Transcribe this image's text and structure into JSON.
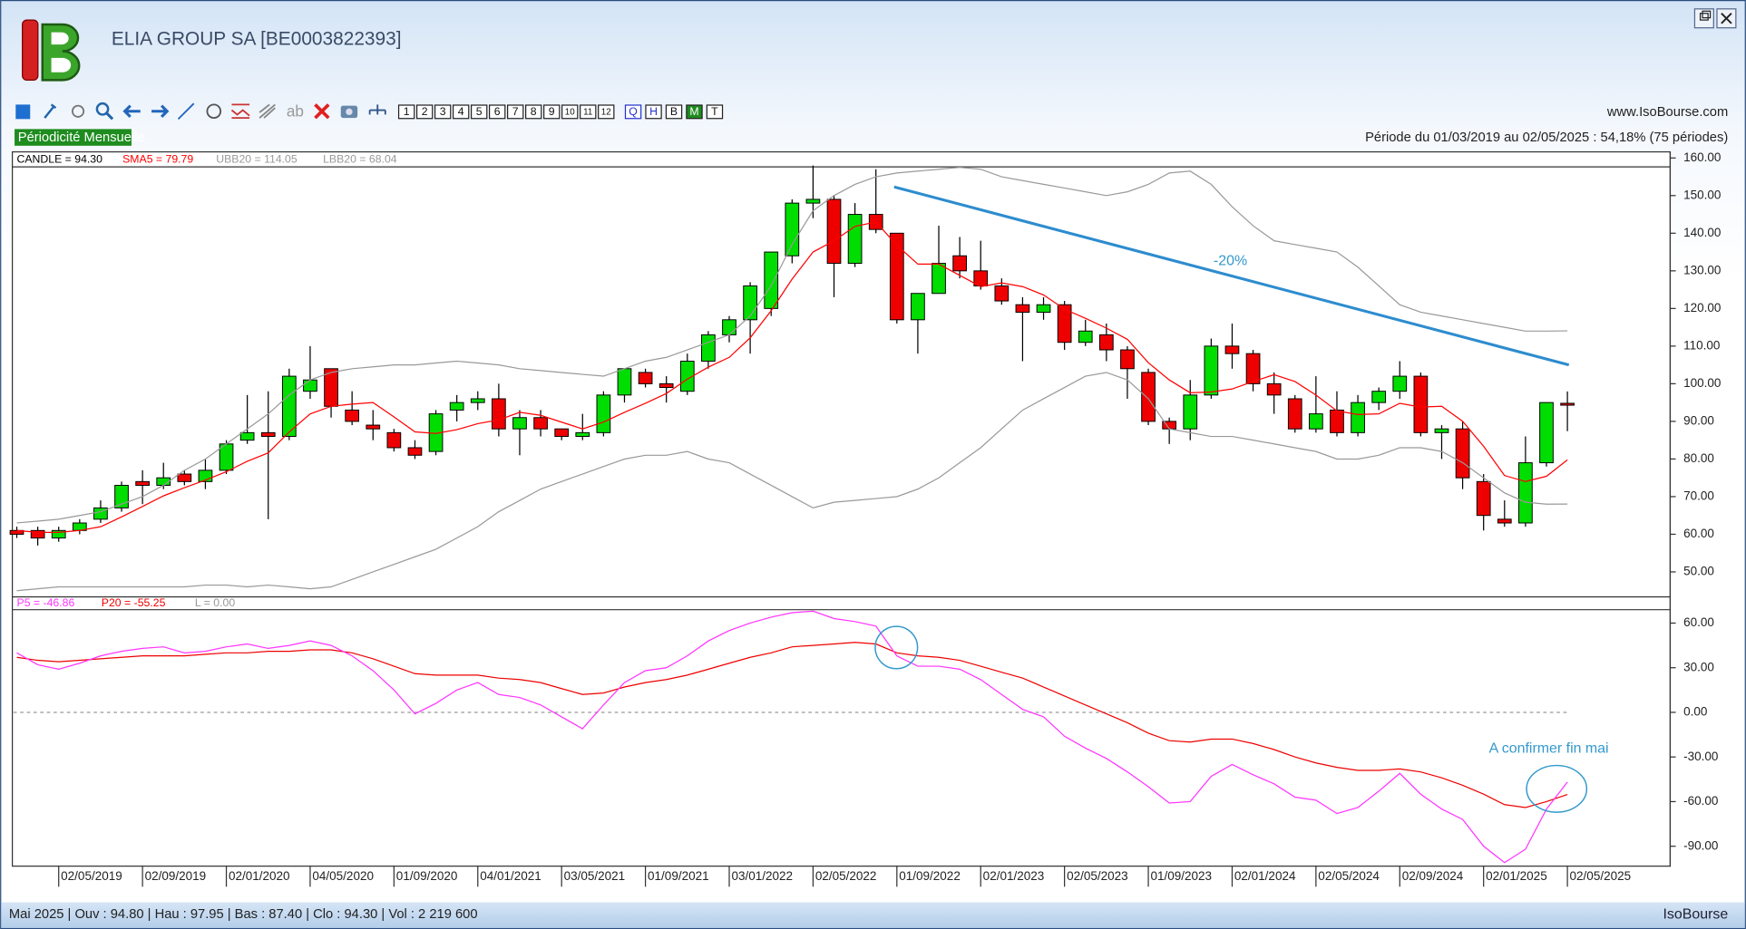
{
  "header": {
    "title": "ELIA GROUP SA [BE0003822393]",
    "source": "www.IsoBourse.com",
    "period": "Période du 01/03/2019 au 02/05/2025 : 54,18% (75 périodes)",
    "periodicity": "Périodicité Mensuelle"
  },
  "toolbar": {
    "text_tool": "ab",
    "buttons": [
      "1",
      "2",
      "3",
      "4",
      "5",
      "6",
      "7",
      "8",
      "9",
      "10",
      "11",
      "12",
      "Q",
      "H",
      "B",
      "M",
      "T"
    ],
    "active_button": "M"
  },
  "status": {
    "text": "Mai 2025 | Ouv : 94.80 | Hau : 97.95 | Bas : 87.40 | Clo : 94.30 | Vol : 2 219 600",
    "brand": "IsoBourse"
  },
  "chart_data": [
    {
      "type": "candlestick",
      "categories": [
        null,
        null,
        "02/05/2019",
        null,
        null,
        null,
        "02/09/2019",
        null,
        null,
        null,
        "02/01/2020",
        null,
        null,
        null,
        "04/05/2020",
        null,
        null,
        null,
        "01/09/2020",
        null,
        null,
        null,
        "04/01/2021",
        null,
        null,
        null,
        "03/05/2021",
        null,
        null,
        null,
        "01/09/2021",
        null,
        null,
        null,
        "03/01/2022",
        null,
        null,
        null,
        "02/05/2022",
        null,
        null,
        null,
        "01/09/2022",
        null,
        null,
        null,
        "02/01/2023",
        null,
        null,
        null,
        "02/05/2023",
        null,
        null,
        null,
        "01/09/2023",
        null,
        null,
        null,
        "02/01/2024",
        null,
        null,
        null,
        "02/05/2024",
        null,
        null,
        null,
        "02/09/2024",
        null,
        null,
        null,
        "02/01/2025",
        null,
        null,
        null,
        "02/05/2025"
      ],
      "series": [
        {
          "name": "CANDLE = 94.30",
          "color": "#000000",
          "up_color": "#00dd00",
          "down_color": "#ee0000",
          "open": [
            61,
            61,
            59,
            61,
            64,
            67,
            74,
            73,
            76,
            74,
            77,
            85,
            87,
            86,
            98,
            104,
            93,
            89,
            87,
            83,
            82,
            93,
            95,
            96,
            88,
            91,
            88,
            86,
            87,
            97,
            103,
            100,
            98,
            106,
            113,
            117,
            120,
            134,
            148,
            149,
            132,
            145,
            140,
            117,
            124,
            134,
            130,
            126,
            121,
            119,
            121,
            111,
            113,
            109,
            103,
            90,
            88,
            97,
            110,
            108,
            100,
            96,
            88,
            93,
            87,
            95,
            98,
            102,
            87,
            88,
            74,
            64,
            63,
            79,
            94.8
          ],
          "high": [
            62,
            62,
            62,
            64,
            69,
            74,
            77,
            79,
            77,
            80,
            85,
            97,
            98,
            104,
            110,
            104,
            98,
            93,
            88,
            85,
            93,
            97,
            98,
            100,
            93,
            93,
            88,
            92,
            98,
            104,
            104,
            102,
            108,
            114,
            118,
            127,
            135,
            149,
            158,
            150,
            148,
            157,
            140,
            124,
            142,
            139,
            138,
            128,
            123,
            123,
            122,
            117,
            116,
            110,
            104,
            91,
            101,
            112,
            116,
            109,
            103,
            97,
            102,
            98,
            97,
            99,
            106,
            103,
            89,
            90,
            76,
            69,
            86,
            95,
            97.95
          ],
          "low": [
            59,
            57,
            58,
            60,
            63,
            66,
            68,
            72,
            73,
            72,
            76,
            84,
            64,
            85,
            96,
            91,
            89,
            85,
            82,
            80,
            81,
            90,
            93,
            86,
            81,
            86,
            85,
            85,
            86,
            95,
            99,
            95,
            97,
            104,
            111,
            108,
            118,
            132,
            144,
            123,
            131,
            140,
            116,
            108,
            124,
            128,
            125,
            121,
            106,
            117,
            109,
            110,
            106,
            96,
            89,
            84,
            85,
            96,
            104,
            98,
            92,
            87,
            87,
            86,
            86,
            93,
            96,
            86,
            80,
            72,
            61,
            62,
            62,
            78,
            87.4
          ],
          "close": [
            60,
            59,
            61,
            63,
            67,
            73,
            73,
            75,
            74,
            77,
            84,
            87,
            86,
            102,
            101,
            94,
            90,
            88,
            83,
            81,
            92,
            95,
            96,
            88,
            91,
            88,
            86,
            87,
            97,
            104,
            100,
            99,
            106,
            113,
            117,
            126,
            135,
            148,
            149,
            132,
            145,
            141,
            117,
            124,
            132,
            130,
            126,
            122,
            119,
            121,
            111,
            114,
            109,
            104,
            90,
            88,
            97,
            110,
            108,
            100,
            97,
            88,
            92,
            87,
            95,
            98,
            102,
            87,
            88,
            75,
            65,
            63,
            79,
            95,
            94.3
          ]
        },
        {
          "name": "SMA5 = 79.79",
          "color": "#ff0000",
          "values": [
            61,
            60.5,
            60.5,
            61,
            62,
            64.6,
            67.4,
            70.2,
            72.4,
            74.4,
            76.6,
            79.4,
            81.6,
            87.2,
            92,
            94,
            94.6,
            95,
            91.2,
            87.2,
            86.8,
            87.8,
            89.4,
            90.4,
            92.4,
            91.6,
            89.8,
            88,
            89.8,
            92.4,
            94.8,
            97.4,
            101.2,
            104.4,
            107,
            112.2,
            119.4,
            127.8,
            135,
            138,
            141.8,
            143,
            136.8,
            131.8,
            131.8,
            128.8,
            125.8,
            126.8,
            125.8,
            123.6,
            119.8,
            117.4,
            114.8,
            111.8,
            105.6,
            101,
            97.6,
            97.8,
            98.6,
            100.6,
            102.4,
            100.6,
            97,
            92.8,
            91.8,
            92,
            94.8,
            93.8,
            94,
            90,
            83.4,
            75.6,
            74,
            75.4,
            79.79
          ]
        },
        {
          "name": "UBB20 = 114.05",
          "color": "#999999",
          "values": [
            63,
            63.5,
            64,
            65,
            66,
            68,
            70,
            73,
            77,
            80,
            84,
            88,
            92,
            97,
            101,
            103,
            104,
            104.5,
            105,
            105,
            105.5,
            106,
            105.5,
            105,
            104,
            103.5,
            103,
            102.5,
            102,
            104,
            106,
            107,
            109,
            111,
            113,
            118,
            126,
            137,
            146,
            150,
            153,
            155,
            156,
            156.5,
            157,
            157.5,
            157,
            155,
            154,
            153,
            152,
            151,
            150,
            151,
            153,
            156,
            156.5,
            153,
            147,
            142,
            138,
            137,
            136,
            135,
            131,
            126,
            121,
            119,
            118,
            117,
            116,
            115,
            114,
            114,
            114.05
          ]
        },
        {
          "name": "LBB20 = 68.04",
          "color": "#999999",
          "values": [
            45,
            45.5,
            46,
            46,
            46,
            46,
            46,
            46,
            46,
            46.5,
            46.5,
            46,
            46.5,
            46,
            45.5,
            46,
            48,
            50,
            52,
            54,
            56,
            59,
            62,
            66,
            69,
            72,
            74,
            76,
            78,
            80,
            81,
            81,
            82,
            80,
            79,
            76,
            73,
            70,
            67,
            68.5,
            69,
            69.5,
            70,
            72,
            75,
            79,
            83,
            88,
            93,
            96,
            99,
            102,
            103,
            101,
            96,
            88,
            87,
            86,
            86,
            85,
            84,
            83,
            82,
            80,
            80,
            81,
            83,
            83,
            82,
            79,
            75,
            71,
            68.5,
            68,
            68.04
          ]
        }
      ],
      "ylim": [
        43.5,
        160.2
      ],
      "yticks": [
        {
          "value": 50,
          "label": "50.00"
        },
        {
          "value": 60,
          "label": "60.00"
        },
        {
          "value": 70,
          "label": "70.00"
        },
        {
          "value": 80,
          "label": "80.00"
        },
        {
          "value": 90,
          "label": "90.00"
        },
        {
          "value": 100,
          "label": "100.00"
        },
        {
          "value": 110,
          "label": "110.00"
        },
        {
          "value": 120,
          "label": "120.00"
        },
        {
          "value": 130,
          "label": "130.00"
        },
        {
          "value": 140,
          "label": "140.00"
        },
        {
          "value": 150,
          "label": "150.00"
        },
        {
          "value": 160,
          "label": "160.00"
        }
      ],
      "annotations": [
        "-20%"
      ]
    },
    {
      "type": "line",
      "series": [
        {
          "name": "P5 = -46.86",
          "color": "#ff33ff",
          "values": [
            40,
            32,
            29,
            33,
            38,
            41,
            43,
            44,
            40,
            41,
            44,
            46,
            43,
            45,
            48,
            45,
            38,
            28,
            15,
            -1,
            6,
            15,
            20,
            12,
            10,
            5,
            -3,
            -11,
            5,
            20,
            28,
            30,
            38,
            48,
            55,
            60,
            64,
            67,
            68,
            63,
            61,
            58,
            38,
            31,
            31,
            29,
            22,
            12,
            2,
            -3,
            -16,
            -24,
            -31,
            -40,
            -50,
            -61,
            -60,
            -43,
            -35,
            -42,
            -48,
            -57,
            -59,
            -68,
            -64,
            -53,
            -41,
            -55,
            -65,
            -72,
            -90,
            -101,
            -92,
            -65,
            -46.86
          ]
        },
        {
          "name": "P20 = -55.25",
          "color": "#ee0000",
          "values": [
            37,
            35,
            34,
            35,
            36,
            37,
            38,
            38,
            38,
            39,
            40,
            40,
            41,
            41,
            42,
            42,
            40,
            36,
            31,
            26,
            25,
            25,
            25,
            23,
            22,
            20,
            16,
            12,
            13,
            17,
            20,
            22,
            25,
            29,
            33,
            37,
            40,
            44,
            45,
            46,
            47,
            46,
            40,
            38,
            37,
            35,
            31,
            27,
            23,
            17,
            11,
            5,
            -1,
            -7,
            -14,
            -19,
            -20,
            -18,
            -18,
            -21,
            -25,
            -30,
            -34,
            -37,
            -39,
            -39,
            -38,
            -40,
            -44,
            -49,
            -55,
            -62,
            -64,
            -60,
            -55.25
          ]
        }
      ],
      "reference_line": {
        "name": "L = 0.00",
        "value": 0,
        "color": "#999999"
      },
      "ylim": [
        -103,
        69
      ],
      "yticks": [
        {
          "value": 60,
          "label": "60.00"
        },
        {
          "value": 30,
          "label": "30.00"
        },
        {
          "value": 0,
          "label": "0.00"
        },
        {
          "value": -30,
          "label": "-30.00"
        },
        {
          "value": -60,
          "label": "-60.00"
        },
        {
          "value": -90,
          "label": "-90.00"
        }
      ],
      "annotations": [
        "A confirmer fin mai"
      ]
    }
  ]
}
